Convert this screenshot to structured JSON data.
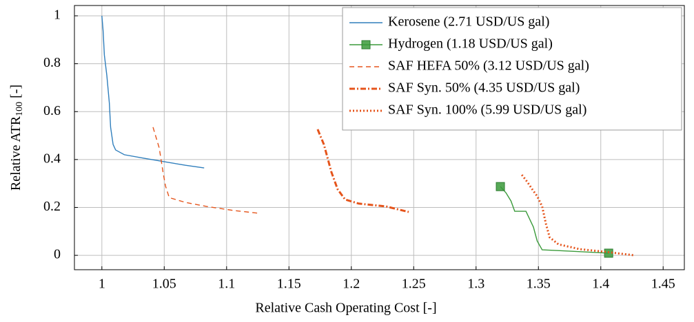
{
  "chart_data": {
    "type": "line",
    "x_label": "Relative Cash Operating Cost [-]",
    "y_label": {
      "text": "Relative ATR",
      "subscript": "100",
      "suffix": "[-]"
    },
    "xlim": [
      0.978,
      1.467
    ],
    "ylim": [
      -0.06,
      1.043
    ],
    "xticks": [
      1,
      1.05,
      1.1,
      1.15,
      1.2,
      1.25,
      1.3,
      1.35,
      1.4,
      1.45
    ],
    "yticks": [
      0,
      0.2,
      0.4,
      0.6,
      0.8,
      1
    ],
    "grid": true,
    "legend": "upper right",
    "series": [
      {
        "name": "Kerosene (2.71 USD/US gal)",
        "color": "#2f7ebc",
        "dash": "solid",
        "x": [
          1,
          1.001,
          1.002,
          1.004,
          1.006,
          1.007,
          1.009,
          1.011,
          1.018,
          1.034,
          1.051,
          1.067,
          1.082
        ],
        "values": [
          1,
          0.937,
          0.836,
          0.75,
          0.635,
          0.535,
          0.463,
          0.44,
          0.42,
          0.405,
          0.39,
          0.376,
          0.365
        ]
      },
      {
        "name": "Hydrogen (1.18 USD/US gal)",
        "color": "#3a9a3a",
        "dash": "solid",
        "marker": "square-ends",
        "x": [
          1.3195,
          1.324,
          1.328,
          1.331,
          1.34,
          1.346,
          1.349,
          1.353,
          1.377,
          1.4063
        ],
        "values": [
          0.287,
          0.261,
          0.227,
          0.184,
          0.184,
          0.118,
          0.06,
          0.023,
          0.017,
          0.009
        ]
      },
      {
        "name": "SAF HEFA 50% (3.12 USD/US gal)",
        "color": "#e5541b",
        "dash": "dashed",
        "x": [
          1.041,
          1.046,
          1.049,
          1.051,
          1.054,
          1.067,
          1.084,
          1.106,
          1.127
        ],
        "values": [
          0.535,
          0.448,
          0.348,
          0.29,
          0.241,
          0.221,
          0.204,
          0.187,
          0.175
        ]
      },
      {
        "name": "SAF Syn. 50% (4.35 USD/US gal)",
        "color": "#e5541b",
        "dash": "dashdot",
        "x": [
          1.173,
          1.178,
          1.184,
          1.189,
          1.195,
          1.206,
          1.228,
          1.246
        ],
        "values": [
          0.526,
          0.463,
          0.348,
          0.276,
          0.233,
          0.216,
          0.204,
          0.181
        ]
      },
      {
        "name": "SAF Syn. 100% (5.99 USD/US gal)",
        "color": "#e5541b",
        "dash": "dotted",
        "x": [
          1.3367,
          1.3413,
          1.345,
          1.349,
          1.353,
          1.356,
          1.359,
          1.366,
          1.383,
          1.405,
          1.427
        ],
        "values": [
          0.336,
          0.305,
          0.276,
          0.247,
          0.204,
          0.132,
          0.075,
          0.046,
          0.026,
          0.014,
          0
        ]
      }
    ]
  }
}
